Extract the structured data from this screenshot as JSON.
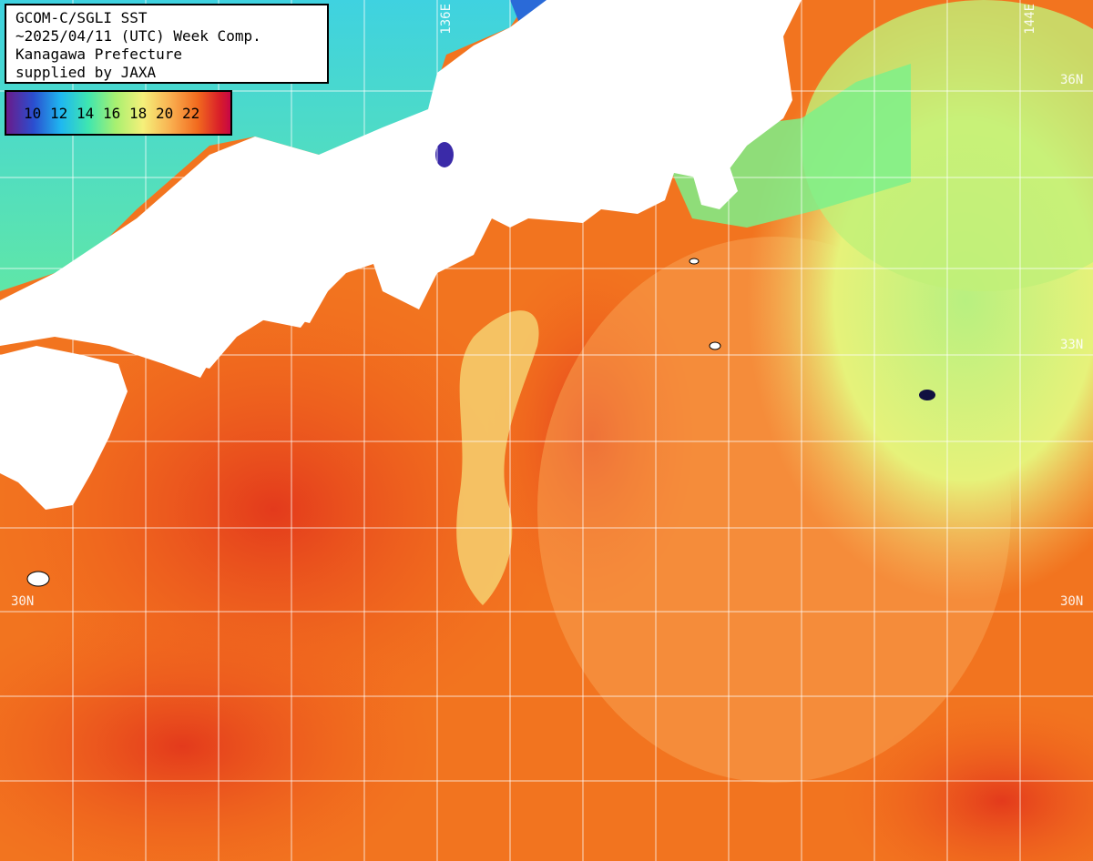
{
  "info": {
    "line1": "GCOM-C/SGLI SST",
    "line2": "~2025/04/11 (UTC) Week Comp.",
    "line3": "Kanagawa Prefecture",
    "line4": "supplied by JAXA"
  },
  "legend": {
    "labels": [
      "10",
      "12",
      "14",
      "16",
      "18",
      "20",
      "22"
    ],
    "colors": [
      "#6a1b8a",
      "#2a4fd0",
      "#1fb8f0",
      "#3fe6b0",
      "#a8f070",
      "#f5f07a",
      "#f9b050",
      "#f26a1e",
      "#d81c2a",
      "#c00050"
    ]
  },
  "coords": {
    "lon_136": "136E",
    "lon_144": "144E",
    "lat_36": "36N",
    "lat_33": "33N",
    "lat_30_left": "30N",
    "lat_30_right": "30N"
  },
  "colors": {
    "land": "#ffffff",
    "grid": "#ffffff",
    "warm": "#f26a1e",
    "hot": "#e0301c",
    "mild": "#f9a857",
    "cool": "#c8f070",
    "cold": "#40d8c0"
  }
}
